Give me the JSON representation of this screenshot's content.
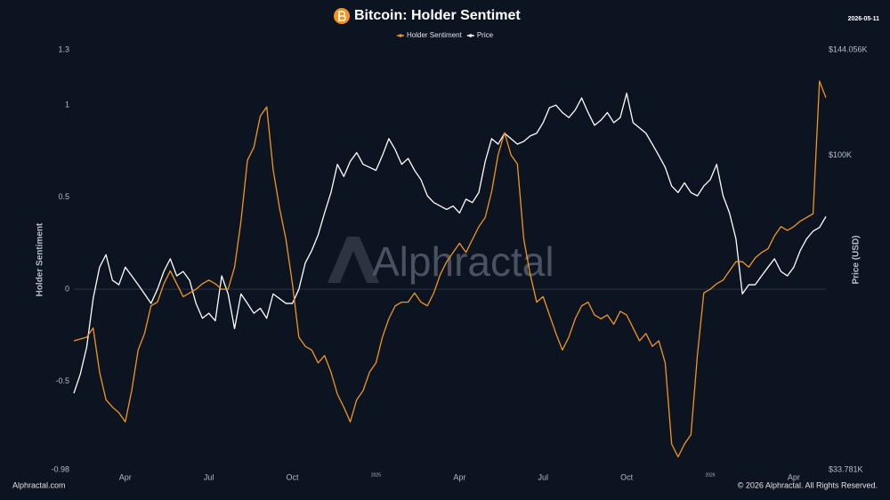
{
  "chart_data": {
    "type": "line",
    "title": "Bitcoin: Holder Sentimet",
    "date": "2026-05-11",
    "ylabel": "Holder Sentiment",
    "y2label": "Price (USD)",
    "watermark": "Alphractal",
    "footer_left": "Alphractal.com",
    "footer_right": "© 2026 Alphractal. All Rights Reserved.",
    "categories": [
      null,
      null,
      null,
      null,
      null,
      null,
      null,
      null,
      "Apr",
      null,
      null,
      null,
      null,
      null,
      null,
      null,
      null,
      null,
      null,
      null,
      null,
      "Jul",
      null,
      null,
      null,
      null,
      null,
      null,
      null,
      null,
      null,
      null,
      null,
      null,
      "Oct",
      null,
      null,
      null,
      null,
      null,
      null,
      null,
      null,
      null,
      null,
      null,
      null,
      "2025",
      null,
      null,
      null,
      null,
      null,
      null,
      null,
      null,
      null,
      null,
      null,
      null,
      "Apr",
      null,
      null,
      null,
      null,
      null,
      null,
      null,
      null,
      null,
      null,
      null,
      null,
      "Jul",
      null,
      null,
      null,
      null,
      null,
      null,
      null,
      null,
      null,
      null,
      null,
      null,
      "Oct",
      null,
      null,
      null,
      null,
      null,
      null,
      null,
      null,
      null,
      null,
      null,
      null,
      "2026",
      null,
      null,
      null,
      null,
      null,
      null,
      null,
      null,
      null,
      null,
      null,
      null,
      "Apr",
      null,
      null,
      null,
      null,
      null
    ],
    "ylim": [
      -0.98,
      1.3
    ],
    "yticks": [
      1.3,
      1,
      0.5,
      0,
      -0.5,
      -0.98
    ],
    "y2lim": [
      33781,
      144056
    ],
    "y2ticks": [
      {
        "value": 144056,
        "label": "$144.056K"
      },
      {
        "value": 100000,
        "label": "$100K"
      },
      {
        "value": 33781,
        "label": "$33.781K"
      }
    ],
    "y2log": true,
    "grid": false,
    "legend": "top",
    "series": [
      {
        "name": "Holder Sentiment",
        "color": "#f0961f",
        "values": [
          -0.28,
          -0.27,
          -0.26,
          -0.21,
          -0.45,
          -0.6,
          -0.64,
          -0.67,
          -0.72,
          -0.55,
          -0.33,
          -0.24,
          -0.09,
          -0.07,
          0.03,
          0.1,
          0.03,
          -0.04,
          -0.02,
          0,
          0.03,
          0.05,
          0.03,
          0,
          0,
          0.12,
          0.37,
          0.7,
          0.77,
          0.94,
          0.99,
          0.65,
          0.44,
          0.27,
          0.03,
          -0.26,
          -0.31,
          -0.33,
          -0.4,
          -0.36,
          -0.45,
          -0.57,
          -0.64,
          -0.72,
          -0.6,
          -0.55,
          -0.45,
          -0.4,
          -0.26,
          -0.16,
          -0.09,
          -0.07,
          -0.07,
          -0.02,
          -0.07,
          -0.09,
          -0.02,
          0.08,
          0.15,
          0.2,
          0.25,
          0.2,
          0.27,
          0.34,
          0.39,
          0.53,
          0.73,
          0.85,
          0.73,
          0.68,
          0.27,
          0.08,
          -0.07,
          -0.04,
          -0.14,
          -0.24,
          -0.33,
          -0.26,
          -0.16,
          -0.09,
          -0.07,
          -0.14,
          -0.16,
          -0.14,
          -0.19,
          -0.12,
          -0.14,
          -0.21,
          -0.28,
          -0.24,
          -0.31,
          -0.28,
          -0.4,
          -0.84,
          -0.91,
          -0.84,
          -0.79,
          -0.36,
          -0.02,
          0,
          0.03,
          0.05,
          0.1,
          0.15,
          0.15,
          0.12,
          0.17,
          0.2,
          0.22,
          0.29,
          0.34,
          0.32,
          0.34,
          0.37,
          0.39,
          0.41,
          1.13,
          1.04
        ]
      },
      {
        "name": "Price",
        "color": "#ffffff",
        "axis": "y2",
        "values": [
          44000,
          47000,
          51600,
          61000,
          68000,
          71000,
          65000,
          64000,
          68000,
          66000,
          64000,
          62000,
          60000,
          63000,
          67000,
          70000,
          66000,
          67000,
          65000,
          60000,
          57000,
          58000,
          56500,
          66000,
          62000,
          55000,
          62000,
          60000,
          58000,
          59000,
          57000,
          62000,
          61000,
          60000,
          60000,
          63000,
          69000,
          72000,
          76000,
          82000,
          88000,
          97000,
          93000,
          98000,
          101000,
          97000,
          96000,
          95000,
          100000,
          106000,
          102000,
          97000,
          99000,
          95000,
          92000,
          87000,
          85000,
          84000,
          83000,
          84000,
          82000,
          86000,
          85000,
          88000,
          98000,
          106000,
          104000,
          108000,
          106000,
          104000,
          105000,
          107000,
          108000,
          112000,
          118000,
          119000,
          116000,
          114000,
          117000,
          122000,
          116000,
          111000,
          113000,
          116000,
          112000,
          114000,
          124000,
          112000,
          110000,
          108000,
          104000,
          100000,
          96000,
          90000,
          88000,
          91000,
          88000,
          87000,
          90000,
          92000,
          97000,
          87000,
          82000,
          75000,
          62000,
          64000,
          64000,
          66000,
          68000,
          70000,
          67000,
          66000,
          68000,
          72000,
          75000,
          77000,
          78000,
          81000
        ]
      }
    ]
  }
}
